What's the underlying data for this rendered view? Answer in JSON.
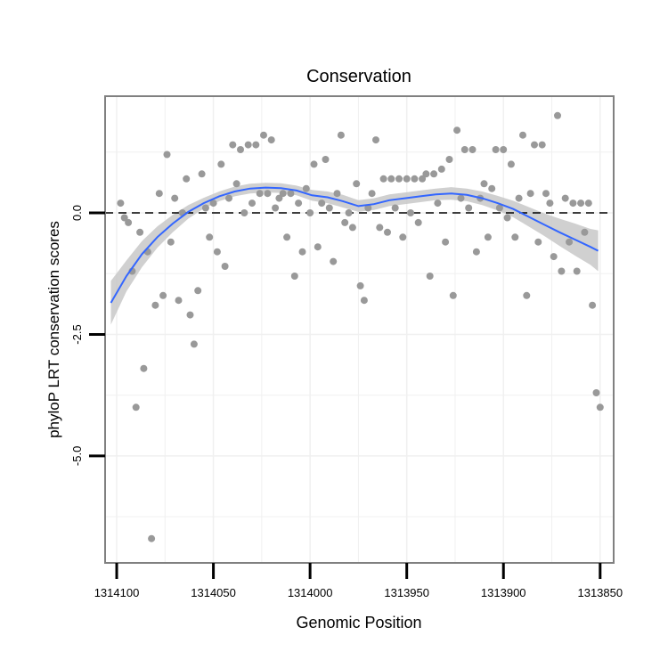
{
  "chart_data": {
    "type": "scatter",
    "title": "Conservation",
    "xlabel": "Genomic Position",
    "ylabel": "phyloP LRT conservation scores",
    "x_reversed": true,
    "xlim": [
      1314106,
      1313843
    ],
    "ylim": [
      -7.2,
      2.4
    ],
    "x_ticks": [
      1314100,
      1314050,
      1314000,
      1313950,
      1313900,
      1313850
    ],
    "x_tick_labels": [
      "1314100",
      "1314050",
      "1314000",
      "1313950",
      "1313900",
      "1313850"
    ],
    "y_ticks": [
      0.0,
      -2.5,
      -5.0
    ],
    "y_tick_labels": [
      "0.0",
      "-2.5",
      "-5.0"
    ],
    "reference_line_y": 0,
    "grid": true,
    "colors": {
      "points": "#999999",
      "smooth_line": "#3366FF",
      "ribbon": "#C8C8C8",
      "panel_border": "#808080",
      "grid": "#F0F0F0"
    },
    "points": [
      {
        "x": 1314098,
        "y": 0.2
      },
      {
        "x": 1314096,
        "y": -0.1
      },
      {
        "x": 1314094,
        "y": -0.2
      },
      {
        "x": 1314092,
        "y": -1.2
      },
      {
        "x": 1314090,
        "y": -4.0
      },
      {
        "x": 1314088,
        "y": -0.4
      },
      {
        "x": 1314086,
        "y": -3.2
      },
      {
        "x": 1314084,
        "y": -0.8
      },
      {
        "x": 1314082,
        "y": -6.7
      },
      {
        "x": 1314080,
        "y": -1.9
      },
      {
        "x": 1314078,
        "y": 0.4
      },
      {
        "x": 1314076,
        "y": -1.7
      },
      {
        "x": 1314074,
        "y": 1.2
      },
      {
        "x": 1314072,
        "y": -0.6
      },
      {
        "x": 1314070,
        "y": 0.3
      },
      {
        "x": 1314068,
        "y": -1.8
      },
      {
        "x": 1314066,
        "y": 0.0
      },
      {
        "x": 1314064,
        "y": 0.7
      },
      {
        "x": 1314062,
        "y": -2.1
      },
      {
        "x": 1314060,
        "y": -2.7
      },
      {
        "x": 1314058,
        "y": -1.6
      },
      {
        "x": 1314056,
        "y": 0.8
      },
      {
        "x": 1314054,
        "y": 0.1
      },
      {
        "x": 1314052,
        "y": -0.5
      },
      {
        "x": 1314050,
        "y": 0.2
      },
      {
        "x": 1314048,
        "y": -0.8
      },
      {
        "x": 1314046,
        "y": 1.0
      },
      {
        "x": 1314044,
        "y": -1.1
      },
      {
        "x": 1314042,
        "y": 0.3
      },
      {
        "x": 1314040,
        "y": 1.4
      },
      {
        "x": 1314038,
        "y": 0.6
      },
      {
        "x": 1314036,
        "y": 1.3
      },
      {
        "x": 1314034,
        "y": 0.0
      },
      {
        "x": 1314032,
        "y": 1.4
      },
      {
        "x": 1314030,
        "y": 0.2
      },
      {
        "x": 1314028,
        "y": 1.4
      },
      {
        "x": 1314026,
        "y": 0.4
      },
      {
        "x": 1314024,
        "y": 1.6
      },
      {
        "x": 1314022,
        "y": 0.4
      },
      {
        "x": 1314020,
        "y": 1.5
      },
      {
        "x": 1314018,
        "y": 0.1
      },
      {
        "x": 1314016,
        "y": 0.3
      },
      {
        "x": 1314014,
        "y": 0.4
      },
      {
        "x": 1314012,
        "y": -0.5
      },
      {
        "x": 1314010,
        "y": 0.4
      },
      {
        "x": 1314008,
        "y": -1.3
      },
      {
        "x": 1314006,
        "y": 0.2
      },
      {
        "x": 1314004,
        "y": -0.8
      },
      {
        "x": 1314002,
        "y": 0.5
      },
      {
        "x": 1314000,
        "y": 0.0
      },
      {
        "x": 1313998,
        "y": 1.0
      },
      {
        "x": 1313996,
        "y": -0.7
      },
      {
        "x": 1313994,
        "y": 0.2
      },
      {
        "x": 1313992,
        "y": 1.1
      },
      {
        "x": 1313990,
        "y": 0.1
      },
      {
        "x": 1313988,
        "y": -1.0
      },
      {
        "x": 1313986,
        "y": 0.4
      },
      {
        "x": 1313984,
        "y": 1.6
      },
      {
        "x": 1313982,
        "y": -0.2
      },
      {
        "x": 1313980,
        "y": 0.0
      },
      {
        "x": 1313978,
        "y": -0.3
      },
      {
        "x": 1313976,
        "y": 0.6
      },
      {
        "x": 1313974,
        "y": -1.5
      },
      {
        "x": 1313972,
        "y": -1.8
      },
      {
        "x": 1313970,
        "y": 0.1
      },
      {
        "x": 1313968,
        "y": 0.4
      },
      {
        "x": 1313966,
        "y": 1.5
      },
      {
        "x": 1313964,
        "y": -0.3
      },
      {
        "x": 1313962,
        "y": 0.7
      },
      {
        "x": 1313960,
        "y": -0.4
      },
      {
        "x": 1313958,
        "y": 0.7
      },
      {
        "x": 1313956,
        "y": 0.1
      },
      {
        "x": 1313954,
        "y": 0.7
      },
      {
        "x": 1313952,
        "y": -0.5
      },
      {
        "x": 1313950,
        "y": 0.7
      },
      {
        "x": 1313948,
        "y": 0.0
      },
      {
        "x": 1313946,
        "y": 0.7
      },
      {
        "x": 1313944,
        "y": -0.2
      },
      {
        "x": 1313942,
        "y": 0.7
      },
      {
        "x": 1313940,
        "y": 0.8
      },
      {
        "x": 1313938,
        "y": -1.3
      },
      {
        "x": 1313936,
        "y": 0.8
      },
      {
        "x": 1313934,
        "y": 0.2
      },
      {
        "x": 1313932,
        "y": 0.9
      },
      {
        "x": 1313930,
        "y": -0.6
      },
      {
        "x": 1313928,
        "y": 1.1
      },
      {
        "x": 1313926,
        "y": -1.7
      },
      {
        "x": 1313924,
        "y": 1.7
      },
      {
        "x": 1313922,
        "y": 0.3
      },
      {
        "x": 1313920,
        "y": 1.3
      },
      {
        "x": 1313918,
        "y": 0.1
      },
      {
        "x": 1313916,
        "y": 1.3
      },
      {
        "x": 1313914,
        "y": -0.8
      },
      {
        "x": 1313912,
        "y": 0.3
      },
      {
        "x": 1313910,
        "y": 0.6
      },
      {
        "x": 1313908,
        "y": -0.5
      },
      {
        "x": 1313906,
        "y": 0.5
      },
      {
        "x": 1313904,
        "y": 1.3
      },
      {
        "x": 1313902,
        "y": 0.1
      },
      {
        "x": 1313900,
        "y": 1.3
      },
      {
        "x": 1313898,
        "y": -0.1
      },
      {
        "x": 1313896,
        "y": 1.0
      },
      {
        "x": 1313894,
        "y": -0.5
      },
      {
        "x": 1313892,
        "y": 0.3
      },
      {
        "x": 1313890,
        "y": 1.6
      },
      {
        "x": 1313888,
        "y": -1.7
      },
      {
        "x": 1313886,
        "y": 0.4
      },
      {
        "x": 1313884,
        "y": 1.4
      },
      {
        "x": 1313882,
        "y": -0.6
      },
      {
        "x": 1313880,
        "y": 1.4
      },
      {
        "x": 1313878,
        "y": 0.4
      },
      {
        "x": 1313876,
        "y": 0.2
      },
      {
        "x": 1313874,
        "y": -0.9
      },
      {
        "x": 1313872,
        "y": 2.0
      },
      {
        "x": 1313870,
        "y": -1.2
      },
      {
        "x": 1313868,
        "y": 0.3
      },
      {
        "x": 1313866,
        "y": -0.6
      },
      {
        "x": 1313864,
        "y": 0.2
      },
      {
        "x": 1313862,
        "y": -1.2
      },
      {
        "x": 1313860,
        "y": 0.2
      },
      {
        "x": 1313858,
        "y": -0.4
      },
      {
        "x": 1313856,
        "y": 0.2
      },
      {
        "x": 1313854,
        "y": -1.9
      },
      {
        "x": 1313852,
        "y": -3.7
      },
      {
        "x": 1313850,
        "y": -4.0
      }
    ],
    "smooth": {
      "x": [
        1314103,
        1314095,
        1314087,
        1314079,
        1314071,
        1314063,
        1314055,
        1314047,
        1314039,
        1314031,
        1314023,
        1314015,
        1314007,
        1313999,
        1313991,
        1313983,
        1313975,
        1313967,
        1313959,
        1313951,
        1313943,
        1313935,
        1313927,
        1313919,
        1313911,
        1313903,
        1313895,
        1313887,
        1313879,
        1313871,
        1313863,
        1313855,
        1313851
      ],
      "y": [
        -1.85,
        -1.3,
        -0.85,
        -0.5,
        -0.22,
        0.02,
        0.2,
        0.34,
        0.44,
        0.5,
        0.52,
        0.51,
        0.46,
        0.36,
        0.32,
        0.24,
        0.14,
        0.18,
        0.26,
        0.3,
        0.34,
        0.38,
        0.4,
        0.37,
        0.3,
        0.2,
        0.08,
        -0.08,
        -0.24,
        -0.4,
        -0.55,
        -0.7,
        -0.78
      ],
      "lower": [
        -2.3,
        -1.62,
        -1.12,
        -0.72,
        -0.4,
        -0.12,
        0.09,
        0.24,
        0.34,
        0.4,
        0.42,
        0.41,
        0.36,
        0.25,
        0.2,
        0.11,
        0.02,
        0.06,
        0.14,
        0.18,
        0.22,
        0.26,
        0.27,
        0.24,
        0.16,
        0.05,
        -0.09,
        -0.28,
        -0.47,
        -0.68,
        -0.88,
        -1.07,
        -1.2
      ],
      "upper": [
        -1.4,
        -0.98,
        -0.58,
        -0.28,
        -0.04,
        0.16,
        0.31,
        0.44,
        0.54,
        0.6,
        0.62,
        0.61,
        0.56,
        0.47,
        0.44,
        0.37,
        0.26,
        0.3,
        0.38,
        0.42,
        0.46,
        0.5,
        0.53,
        0.5,
        0.44,
        0.35,
        0.25,
        0.12,
        -0.01,
        -0.12,
        -0.22,
        -0.33,
        -0.36
      ]
    }
  }
}
